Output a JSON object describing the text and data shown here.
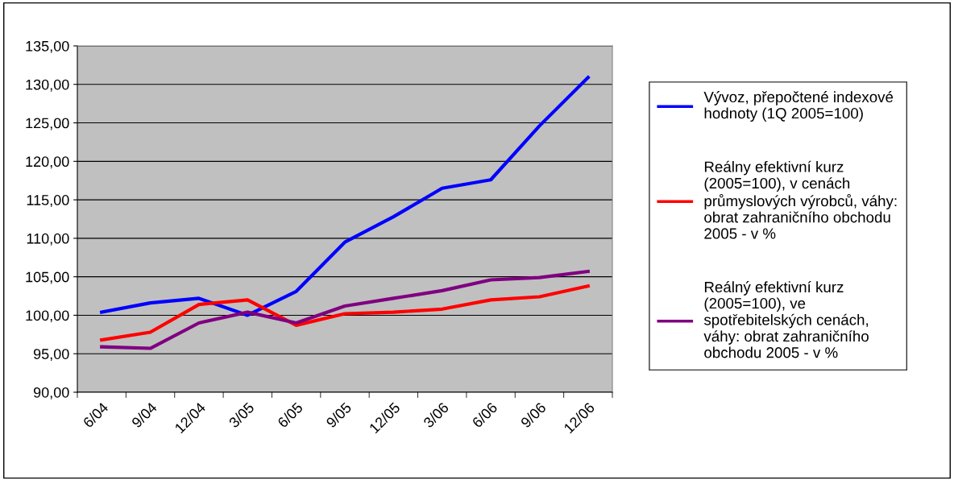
{
  "chart_data": {
    "type": "line",
    "categories": [
      "6/04",
      "9/04",
      "12/04",
      "3/05",
      "6/05",
      "9/05",
      "12/05",
      "3/06",
      "6/06",
      "9/06",
      "12/06"
    ],
    "series": [
      {
        "name": "Vývoz, přepočtené indexové\nhodnoty (1Q 2005=100)",
        "color": "#0000ff",
        "values": [
          100.4,
          101.6,
          102.2,
          100.0,
          103.1,
          109.5,
          112.8,
          116.5,
          117.6,
          124.6,
          130.9
        ]
      },
      {
        "name": "Reálny efektivní kurz\n(2005=100), v cenách\nprůmyslových výrobců, váhy:\nobrat zahraničního obchodu\n2005 - v %",
        "color": "#ff0000",
        "values": [
          96.8,
          97.8,
          101.4,
          102.0,
          98.7,
          100.2,
          100.4,
          100.8,
          102.0,
          102.4,
          103.8
        ]
      },
      {
        "name": "Reálný efektivní kurz\n(2005=100), ve\nspotřebitelských cenách,\nváhy: obrat zahraničního\nobchodu 2005 - v %",
        "color": "#800080",
        "values": [
          95.9,
          95.7,
          99.0,
          100.4,
          99.0,
          101.2,
          102.2,
          103.2,
          104.6,
          104.9,
          105.7
        ]
      }
    ],
    "ylim": [
      90,
      135
    ],
    "yticks": [
      {
        "value": 90,
        "label": "90,00"
      },
      {
        "value": 95,
        "label": "95,00"
      },
      {
        "value": 100,
        "label": "100,00"
      },
      {
        "value": 105,
        "label": "105,00"
      },
      {
        "value": 110,
        "label": "110,00"
      },
      {
        "value": 115,
        "label": "115,00"
      },
      {
        "value": 120,
        "label": "120,00"
      },
      {
        "value": 125,
        "label": "125,00"
      },
      {
        "value": 130,
        "label": "130,00"
      },
      {
        "value": 135,
        "label": "135,00"
      }
    ],
    "grid": "y",
    "legend": "right",
    "marker": "none",
    "line_style": "solid"
  }
}
